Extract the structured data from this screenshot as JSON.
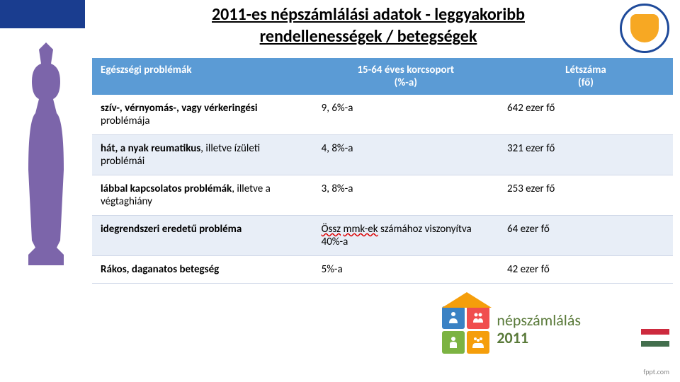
{
  "title": {
    "line1": "2011-es népszámlálási adatok - leggyakoribb",
    "line2": "rendellenességek / betegségek"
  },
  "table": {
    "headers": {
      "problem": "Egészségi problémák",
      "percent_line1": "15-64 éves korcsoport",
      "percent_line2": "(%-a)",
      "count_line1": "Létszáma",
      "count_line2": "(fő)"
    },
    "rows": [
      {
        "problem_bold": "szív-, vérnyomás-, vagy vérkeringési",
        "problem_rest": " problémája",
        "percent": "9, 6%-a",
        "count": "642 ezer fő"
      },
      {
        "problem_bold": "hát, a nyak reumatikus",
        "problem_rest": ", illetve ízületi problémái",
        "percent": "4, 8%-a",
        "count": "321 ezer fő"
      },
      {
        "problem_bold": "lábbal kapcsolatos problémák",
        "problem_rest": ", illetve a végtaghiány",
        "percent": "3, 8%-a",
        "count": "253 ezer fő"
      },
      {
        "problem_bold": "idegrendszeri eredetű probléma",
        "problem_rest": "",
        "percent_underlined1": "Össz",
        "percent_underlined2": "mmk-ek",
        "percent_rest": " számához viszonyítva 40%-a",
        "count": "64 ezer fő"
      },
      {
        "problem_bold": "Rákos, daganatos betegség",
        "problem_rest": "",
        "percent": "5%-a",
        "count": "42 ezer fő"
      }
    ],
    "header_bg": "#5b9bd5",
    "header_text_color": "#ffffff",
    "row_alt_bg": "#e8eef7"
  },
  "footer": {
    "census_text": "népszámlálás",
    "census_year": "2011",
    "squares": [
      {
        "color": "#3b82c4"
      },
      {
        "color": "#f04e4e"
      },
      {
        "color": "#7cb342"
      },
      {
        "color": "#f59e0b"
      }
    ],
    "flag": {
      "top": "#cd2a3e",
      "mid": "#ffffff",
      "bot": "#436f4d"
    },
    "fppt": "fppt.com"
  },
  "silhouette_color": "#4a2a8a"
}
